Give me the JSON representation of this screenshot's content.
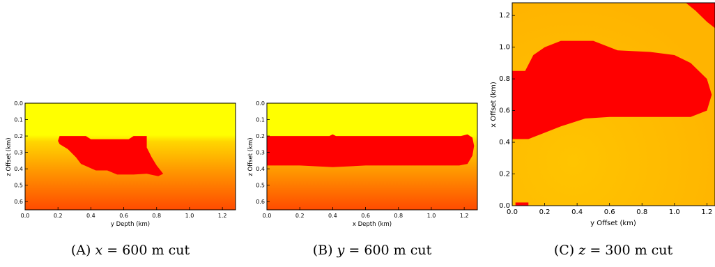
{
  "captions": [
    {
      "prefix": "(A)",
      "var": "x",
      "rest": "= 600 m cut"
    },
    {
      "prefix": "(B)",
      "var": "y",
      "rest": "= 600 m cut"
    },
    {
      "prefix": "(C)",
      "var": "z",
      "rest": "= 300 m cut"
    }
  ],
  "colors": {
    "background_top": "#ffff00",
    "background_bottom": "#ff4b00",
    "body": "#ff0000",
    "panel_c_field": "#ffbc00"
  },
  "chart_data": [
    {
      "type": "heatmap",
      "panel": "A",
      "xlabel": "y Depth  (km)",
      "ylabel": "z Offset (km)",
      "xlim": [
        0.0,
        1.28
      ],
      "ylim": [
        0.65,
        0.0
      ],
      "xticks": [
        "0.0",
        "0.2",
        "0.4",
        "0.6",
        "0.8",
        "1.0",
        "1.2"
      ],
      "yticks": [
        "0.0",
        "0.1",
        "0.2",
        "0.3",
        "0.4",
        "0.5",
        "0.6"
      ],
      "background": "yellow above 0.2 km, grading yellow-orange to red-orange with depth",
      "body_outline": [
        [
          0.21,
          0.2
        ],
        [
          0.37,
          0.2
        ],
        [
          0.4,
          0.22
        ],
        [
          0.63,
          0.22
        ],
        [
          0.66,
          0.2
        ],
        [
          0.74,
          0.2
        ],
        [
          0.74,
          0.27
        ],
        [
          0.77,
          0.33
        ],
        [
          0.8,
          0.38
        ],
        [
          0.84,
          0.43
        ],
        [
          0.81,
          0.445
        ],
        [
          0.74,
          0.43
        ],
        [
          0.66,
          0.435
        ],
        [
          0.56,
          0.435
        ],
        [
          0.5,
          0.41
        ],
        [
          0.43,
          0.41
        ],
        [
          0.34,
          0.37
        ],
        [
          0.31,
          0.33
        ],
        [
          0.26,
          0.28
        ],
        [
          0.21,
          0.25
        ],
        [
          0.2,
          0.23
        ]
      ]
    },
    {
      "type": "heatmap",
      "panel": "B",
      "xlabel": "x Depth  (km)",
      "ylabel": "z Offset (km)",
      "xlim": [
        0.0,
        1.28
      ],
      "ylim": [
        0.65,
        0.0
      ],
      "xticks": [
        "0.0",
        "0.2",
        "0.4",
        "0.6",
        "0.8",
        "1.0",
        "1.2"
      ],
      "yticks": [
        "0.0",
        "0.1",
        "0.2",
        "0.3",
        "0.4",
        "0.5",
        "0.6"
      ],
      "background": "yellow above 0.2 km, grading yellow-orange to red-orange with depth",
      "body_outline": [
        [
          0.0,
          0.2
        ],
        [
          0.38,
          0.2
        ],
        [
          0.4,
          0.19
        ],
        [
          0.42,
          0.2
        ],
        [
          1.18,
          0.2
        ],
        [
          1.22,
          0.19
        ],
        [
          1.25,
          0.21
        ],
        [
          1.26,
          0.26
        ],
        [
          1.25,
          0.32
        ],
        [
          1.22,
          0.37
        ],
        [
          1.17,
          0.38
        ],
        [
          0.6,
          0.38
        ],
        [
          0.4,
          0.39
        ],
        [
          0.2,
          0.38
        ],
        [
          0.0,
          0.38
        ]
      ]
    },
    {
      "type": "heatmap",
      "panel": "C",
      "xlabel": "y Offset (km)",
      "ylabel": "x Offset (km)",
      "xlim": [
        0.0,
        1.25
      ],
      "ylim": [
        0.0,
        1.28
      ],
      "xticks": [
        "0.0",
        "0.2",
        "0.4",
        "0.6",
        "0.8",
        "1.0",
        "1.2"
      ],
      "yticks": [
        "0.0",
        "0.2",
        "0.4",
        "0.6",
        "0.8",
        "1.0",
        "1.2"
      ],
      "background": "yellow-orange field, lighter toward lower left",
      "body_outline": [
        [
          0.0,
          0.85
        ],
        [
          0.08,
          0.85
        ],
        [
          0.13,
          0.95
        ],
        [
          0.2,
          1.0
        ],
        [
          0.3,
          1.04
        ],
        [
          0.5,
          1.04
        ],
        [
          0.65,
          0.98
        ],
        [
          0.85,
          0.97
        ],
        [
          1.0,
          0.95
        ],
        [
          1.1,
          0.9
        ],
        [
          1.2,
          0.8
        ],
        [
          1.23,
          0.7
        ],
        [
          1.2,
          0.6
        ],
        [
          1.1,
          0.56
        ],
        [
          0.6,
          0.56
        ],
        [
          0.45,
          0.55
        ],
        [
          0.3,
          0.5
        ],
        [
          0.2,
          0.46
        ],
        [
          0.1,
          0.42
        ],
        [
          0.0,
          0.42
        ]
      ],
      "corner_body_outline": [
        [
          1.07,
          1.28
        ],
        [
          1.25,
          1.28
        ],
        [
          1.25,
          1.12
        ],
        [
          1.2,
          1.16
        ],
        [
          1.13,
          1.23
        ]
      ],
      "small_patch": {
        "x": [
          0.02,
          0.1
        ],
        "y": [
          0.0,
          0.02
        ]
      }
    }
  ]
}
